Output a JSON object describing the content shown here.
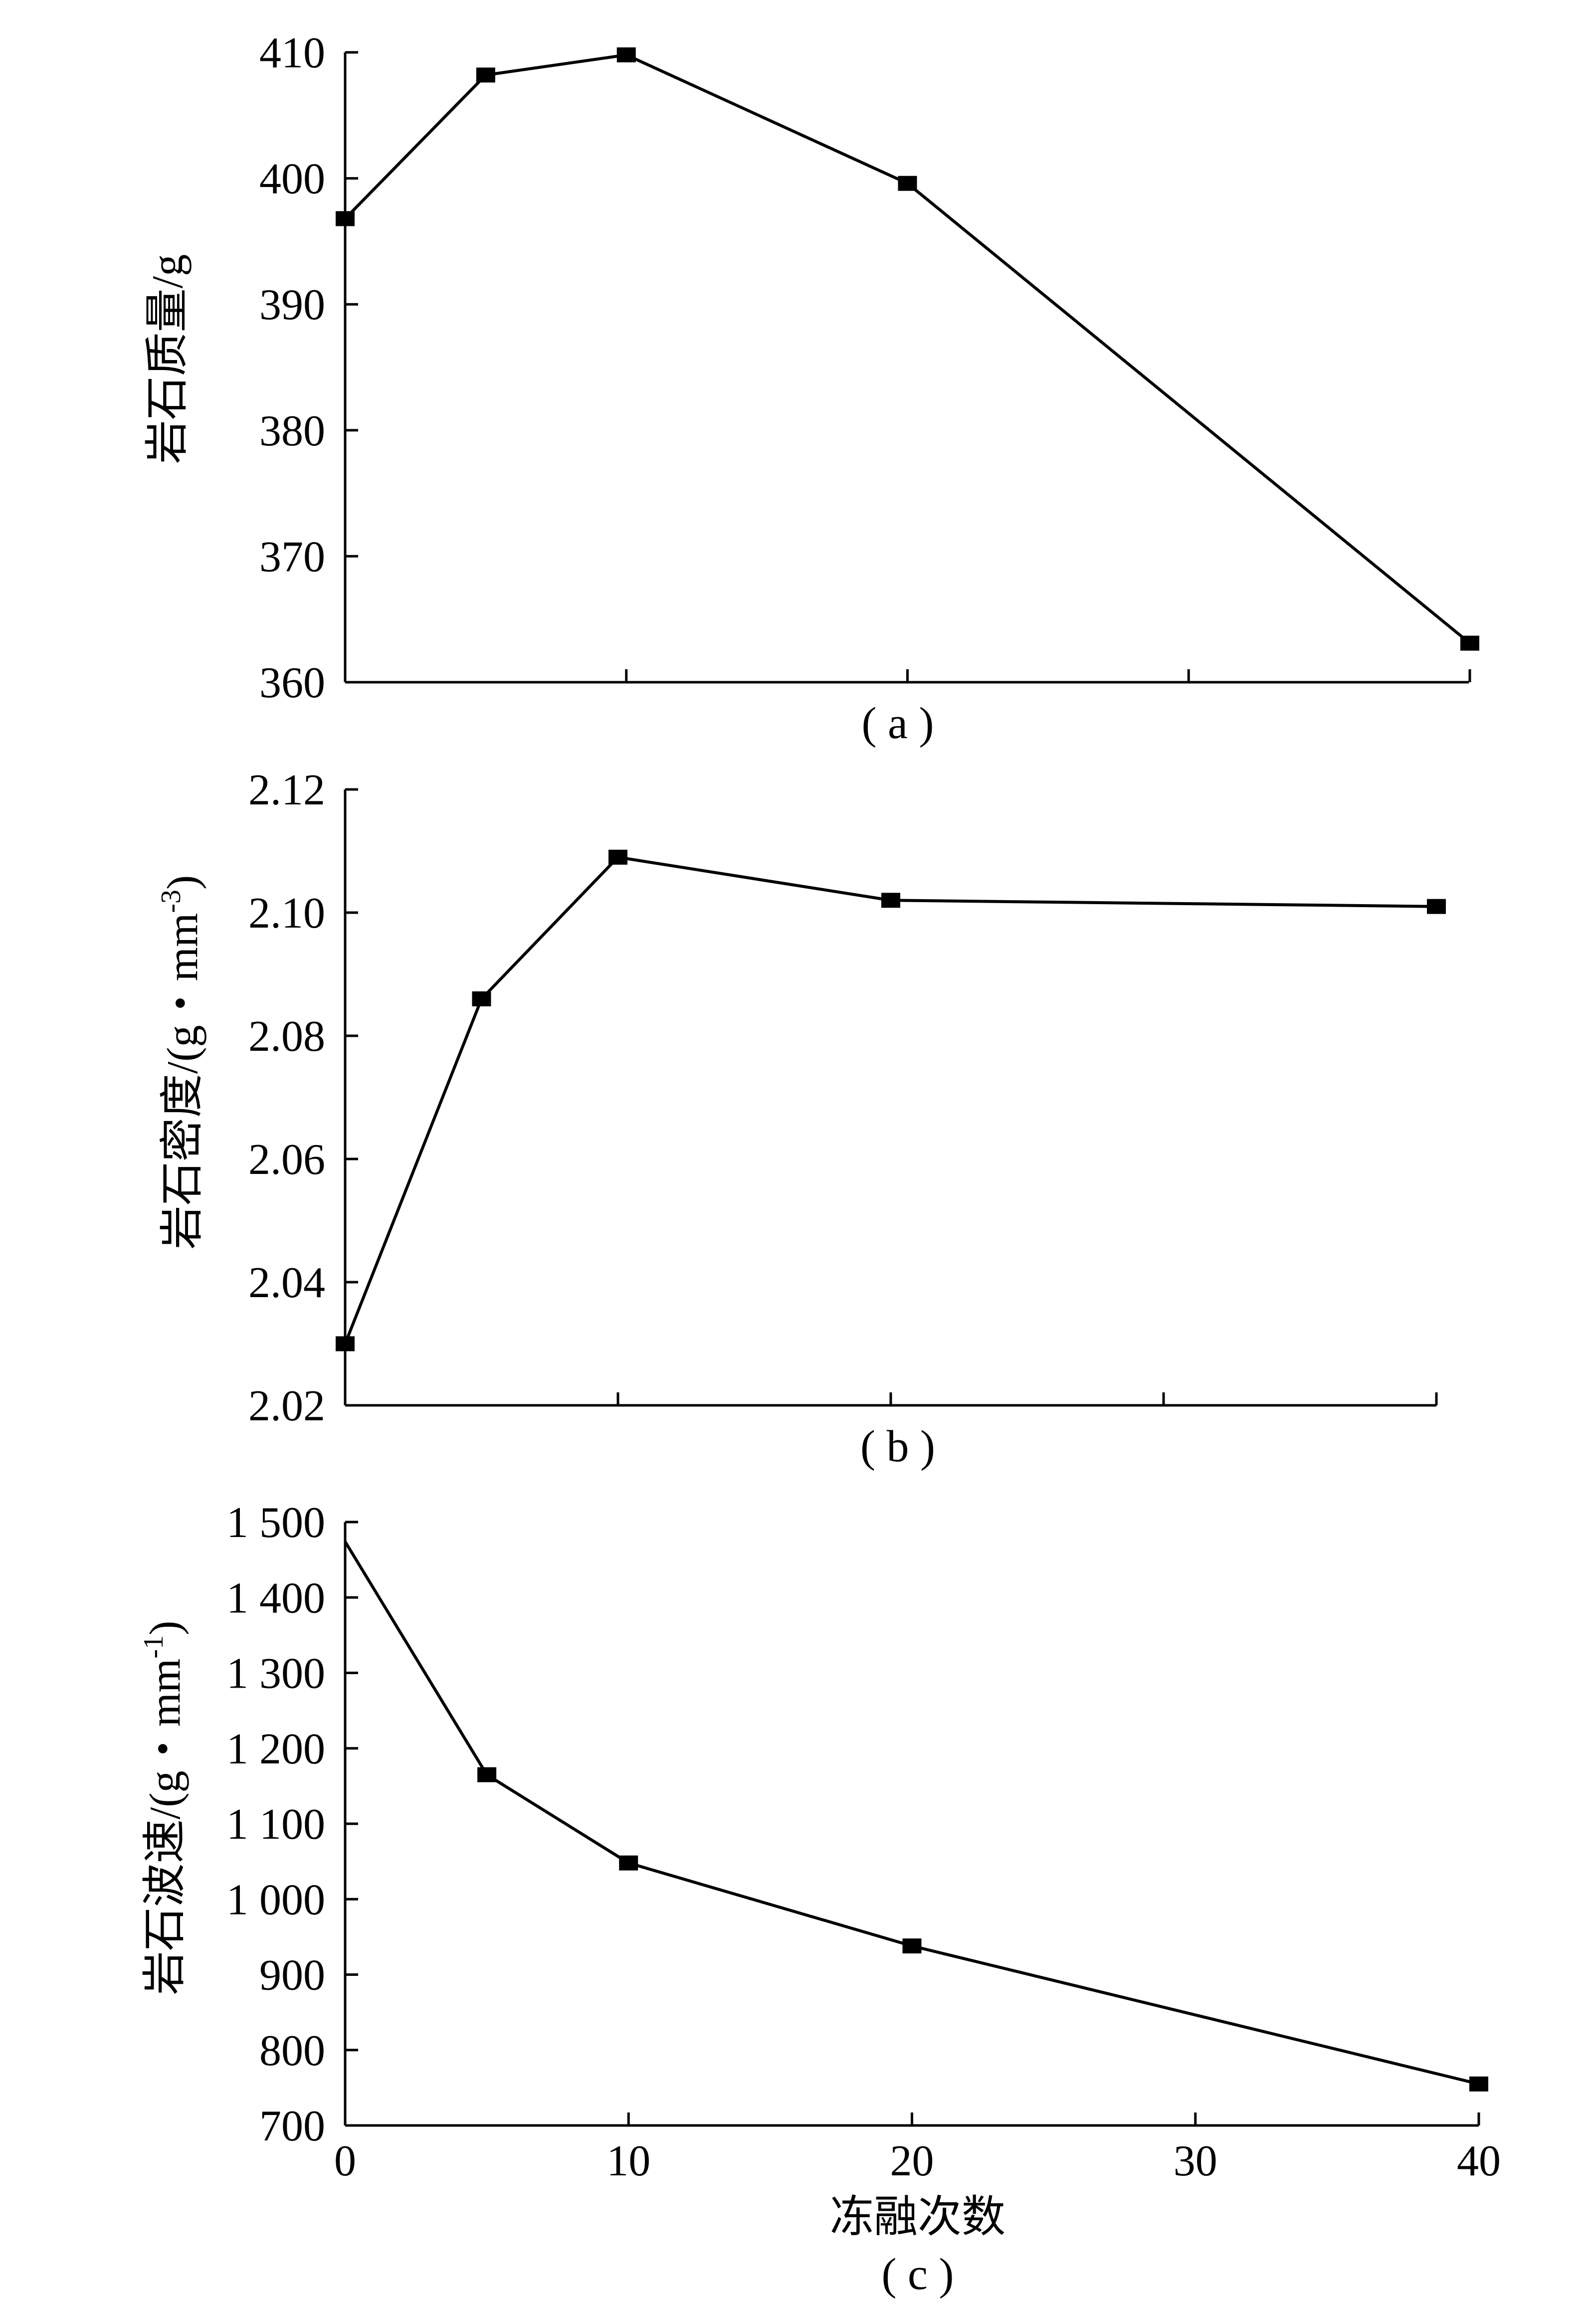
{
  "chart_data": [
    {
      "type": "line",
      "panel_label": "( a )",
      "ylabel": "岩石质量/g",
      "ylim": [
        360,
        410
      ],
      "yticks": [
        360,
        370,
        380,
        390,
        400,
        410
      ],
      "ytick_labels": [
        "360",
        "370",
        "380",
        "390",
        "400",
        "410"
      ],
      "xlim": [
        0,
        40
      ],
      "xticks": [
        0,
        10,
        20,
        30,
        40
      ],
      "xtick_labels": [],
      "series": [
        {
          "x": [
            0,
            5,
            10,
            20,
            40
          ],
          "y": [
            396.8,
            408.2,
            409.8,
            399.6,
            363.1
          ],
          "markers": [
            1,
            1,
            1,
            1,
            1
          ]
        }
      ]
    },
    {
      "type": "line",
      "panel_label": "( b )",
      "ylabel": "岩石密度/(g・mm",
      "ylabel_sup": "-3",
      "ylabel_end": ")",
      "ylim": [
        2.02,
        2.12
      ],
      "yticks": [
        2.02,
        2.04,
        2.06,
        2.08,
        2.1,
        2.12
      ],
      "ytick_labels": [
        "2.02",
        "2.04",
        "2.06",
        "2.08",
        "2.10",
        "2.12"
      ],
      "xlim": [
        0,
        40
      ],
      "xticks": [
        0,
        10,
        20,
        30,
        40
      ],
      "xtick_labels": [],
      "series": [
        {
          "x": [
            0,
            5,
            10,
            20,
            40
          ],
          "y": [
            2.03,
            2.086,
            2.109,
            2.102,
            2.101
          ],
          "markers": [
            1,
            1,
            1,
            1,
            1
          ]
        }
      ]
    },
    {
      "type": "line",
      "panel_label": "( c )",
      "ylabel": "岩石波速/(g・mm",
      "ylabel_sup": "-1",
      "ylabel_end": ")",
      "xlabel": "冻融次数",
      "ylim": [
        700,
        1500
      ],
      "yticks": [
        700,
        800,
        900,
        1000,
        1100,
        1200,
        1300,
        1400,
        1500
      ],
      "ytick_labels": [
        "700",
        "800",
        "900",
        "1 000",
        "1 100",
        "1 200",
        "1 300",
        "1 400",
        "1 500"
      ],
      "xlim": [
        0,
        40
      ],
      "xticks": [
        0,
        10,
        20,
        30,
        40
      ],
      "xtick_labels": [
        "0",
        "10",
        "20",
        "30",
        "40"
      ],
      "series": [
        {
          "x": [
            0,
            5,
            10,
            20,
            40
          ],
          "y": [
            1474,
            1165,
            1048,
            938,
            755
          ],
          "markers": [
            0,
            1,
            1,
            1,
            1
          ]
        }
      ]
    }
  ]
}
